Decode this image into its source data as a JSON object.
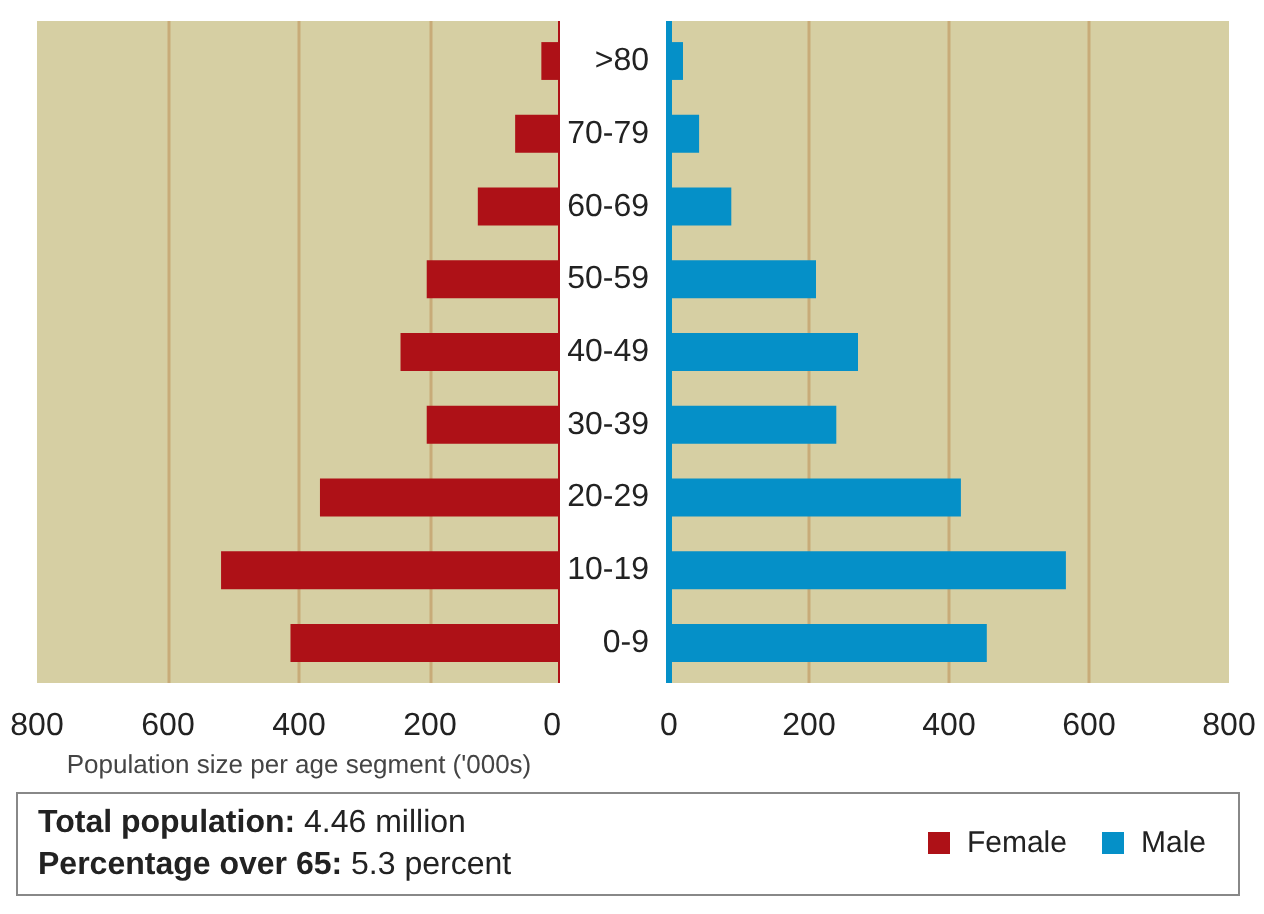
{
  "chart_data": [
    {
      "type": "bar",
      "orientation": "horizontal",
      "categories": [
        null,
        null,
        null,
        null,
        null,
        null,
        null,
        null,
        null
      ],
      "series": [
        {
          "name": "Female",
          "color": "#ae1117",
          "values": [
            30,
            70,
            127,
            205,
            245,
            205,
            368,
            519,
            413
          ]
        }
      ],
      "xlim": [
        800,
        0
      ],
      "xticks": [
        800,
        600,
        400,
        200,
        0
      ],
      "xlabel": "Population size per age segment ('000s)",
      "grid": "x",
      "tick_labels": "x",
      "legend": "bottom",
      "annotations": [
        "Total population: 4.46 million",
        "Percentage over 65: 5.3 percent"
      ]
    },
    {
      "type": "bar",
      "orientation": "horizontal",
      "categories": [
        ">80",
        "70-79",
        "60-69",
        "50-59",
        "40-49",
        "30-39",
        "20-29",
        "10-19",
        "0-9"
      ],
      "series": [
        {
          "name": "Male",
          "color": "#0590c8",
          "values": [
            20,
            43,
            89,
            210,
            270,
            239,
            417,
            567,
            454
          ]
        }
      ],
      "xlim": [
        0,
        800
      ],
      "xticks": [
        0,
        200,
        400,
        600,
        800
      ],
      "grid": "x",
      "legend": "bottom"
    }
  ]
}
